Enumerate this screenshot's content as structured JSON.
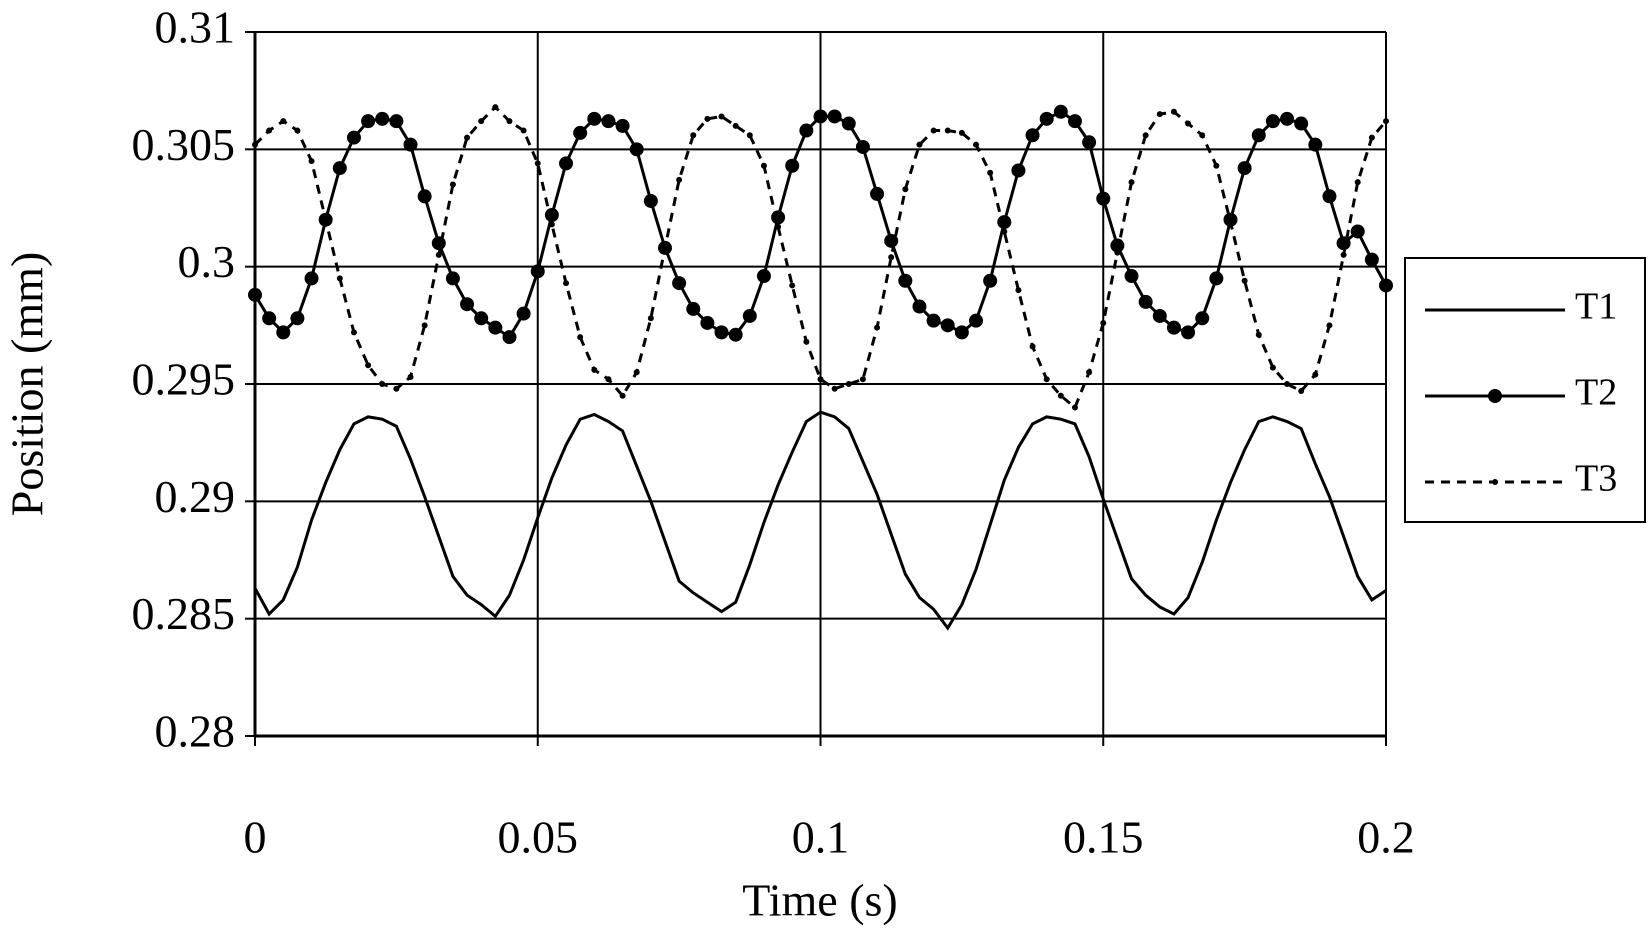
{
  "chart_data": {
    "type": "line",
    "x_label": "Time (s)",
    "y_label": "Position (mm)",
    "x": [
      0,
      0.0025,
      0.005,
      0.0075,
      0.01,
      0.0125,
      0.015,
      0.0175,
      0.02,
      0.0225,
      0.025,
      0.0275,
      0.03,
      0.0325,
      0.035,
      0.0375,
      0.04,
      0.0425,
      0.045,
      0.0475,
      0.05,
      0.0525,
      0.055,
      0.0575,
      0.06,
      0.0625,
      0.065,
      0.0675,
      0.07,
      0.0725,
      0.075,
      0.0775,
      0.08,
      0.0825,
      0.085,
      0.0875,
      0.09,
      0.0925,
      0.095,
      0.0975,
      0.1,
      0.1025,
      0.105,
      0.1075,
      0.11,
      0.1125,
      0.115,
      0.1175,
      0.12,
      0.1225,
      0.125,
      0.1275,
      0.13,
      0.1325,
      0.135,
      0.1375,
      0.14,
      0.1425,
      0.145,
      0.1475,
      0.15,
      0.1525,
      0.155,
      0.1575,
      0.16,
      0.1625,
      0.165,
      0.1675,
      0.17,
      0.1725,
      0.175,
      0.1775,
      0.18,
      0.1825,
      0.185,
      0.1875,
      0.19,
      0.1925,
      0.195,
      0.1975,
      0.2
    ],
    "series": [
      {
        "name": "T1",
        "color": "#000000",
        "dash": false,
        "marker": "none",
        "values": [
          0.2863,
          0.2852,
          0.2858,
          0.2872,
          0.2892,
          0.2908,
          0.2922,
          0.2933,
          0.2936,
          0.2935,
          0.2932,
          0.2918,
          0.2902,
          0.2885,
          0.2868,
          0.286,
          0.2856,
          0.2851,
          0.286,
          0.2875,
          0.2893,
          0.291,
          0.2924,
          0.2935,
          0.2937,
          0.2934,
          0.293,
          0.2915,
          0.29,
          0.2883,
          0.2866,
          0.2861,
          0.2857,
          0.2853,
          0.2857,
          0.2873,
          0.2891,
          0.2907,
          0.2921,
          0.2934,
          0.2938,
          0.2936,
          0.2931,
          0.2917,
          0.2903,
          0.2886,
          0.2869,
          0.2859,
          0.2854,
          0.2846,
          0.2856,
          0.2871,
          0.289,
          0.2909,
          0.2923,
          0.2933,
          0.2936,
          0.2935,
          0.2933,
          0.2919,
          0.2901,
          0.2884,
          0.2867,
          0.286,
          0.2855,
          0.2852,
          0.2859,
          0.2874,
          0.2892,
          0.2908,
          0.2922,
          0.2934,
          0.2936,
          0.2934,
          0.2931,
          0.2916,
          0.2902,
          0.2885,
          0.2868,
          0.2858,
          0.2862
        ]
      },
      {
        "name": "T2",
        "color": "#000000",
        "dash": false,
        "marker": "circle",
        "values": [
          0.2988,
          0.2978,
          0.2972,
          0.2978,
          0.2995,
          0.302,
          0.3042,
          0.3055,
          0.3062,
          0.3063,
          0.3062,
          0.3052,
          0.303,
          0.301,
          0.2995,
          0.2984,
          0.2978,
          0.2974,
          0.297,
          0.298,
          0.2998,
          0.3022,
          0.3044,
          0.3057,
          0.3063,
          0.3062,
          0.306,
          0.305,
          0.3028,
          0.3008,
          0.2993,
          0.2982,
          0.2976,
          0.2972,
          0.2971,
          0.2979,
          0.2996,
          0.3021,
          0.3043,
          0.3058,
          0.3064,
          0.3064,
          0.3061,
          0.3051,
          0.3031,
          0.3011,
          0.2994,
          0.2983,
          0.2977,
          0.2975,
          0.2972,
          0.2977,
          0.2994,
          0.3019,
          0.3041,
          0.3056,
          0.3063,
          0.3066,
          0.3062,
          0.3053,
          0.3029,
          0.3009,
          0.2996,
          0.2985,
          0.2979,
          0.2974,
          0.2972,
          0.2978,
          0.2995,
          0.302,
          0.3042,
          0.3056,
          0.3062,
          0.3063,
          0.3061,
          0.3052,
          0.303,
          0.301,
          0.3015,
          0.3003,
          0.2992
        ]
      },
      {
        "name": "T3",
        "color": "#000000",
        "dash": true,
        "marker": "dot",
        "values": [
          0.3052,
          0.3058,
          0.3062,
          0.3058,
          0.3045,
          0.302,
          0.2995,
          0.2972,
          0.2958,
          0.295,
          0.2948,
          0.2953,
          0.2975,
          0.3005,
          0.3035,
          0.3055,
          0.3062,
          0.3068,
          0.3062,
          0.3058,
          0.3044,
          0.3018,
          0.2993,
          0.297,
          0.2956,
          0.2952,
          0.2945,
          0.2955,
          0.2978,
          0.3008,
          0.3037,
          0.3056,
          0.3063,
          0.3064,
          0.306,
          0.3056,
          0.3043,
          0.3017,
          0.2992,
          0.2968,
          0.2952,
          0.2948,
          0.295,
          0.2952,
          0.2974,
          0.3004,
          0.3033,
          0.3052,
          0.3058,
          0.3058,
          0.3057,
          0.3052,
          0.304,
          0.3015,
          0.299,
          0.2966,
          0.2952,
          0.2945,
          0.294,
          0.2955,
          0.2976,
          0.3006,
          0.3036,
          0.3056,
          0.3065,
          0.3066,
          0.3061,
          0.3056,
          0.3043,
          0.3019,
          0.2994,
          0.2971,
          0.2957,
          0.295,
          0.2947,
          0.2954,
          0.2975,
          0.3005,
          0.3036,
          0.3055,
          0.3062
        ]
      }
    ],
    "xlim": [
      0,
      0.2
    ],
    "xticks": [
      0,
      0.05,
      0.1,
      0.15,
      0.2
    ],
    "ylim": [
      0.28,
      0.31
    ],
    "yticks": [
      0.28,
      0.285,
      0.29,
      0.295,
      0.3,
      0.305,
      0.31
    ],
    "grid": true,
    "legend": "right"
  }
}
